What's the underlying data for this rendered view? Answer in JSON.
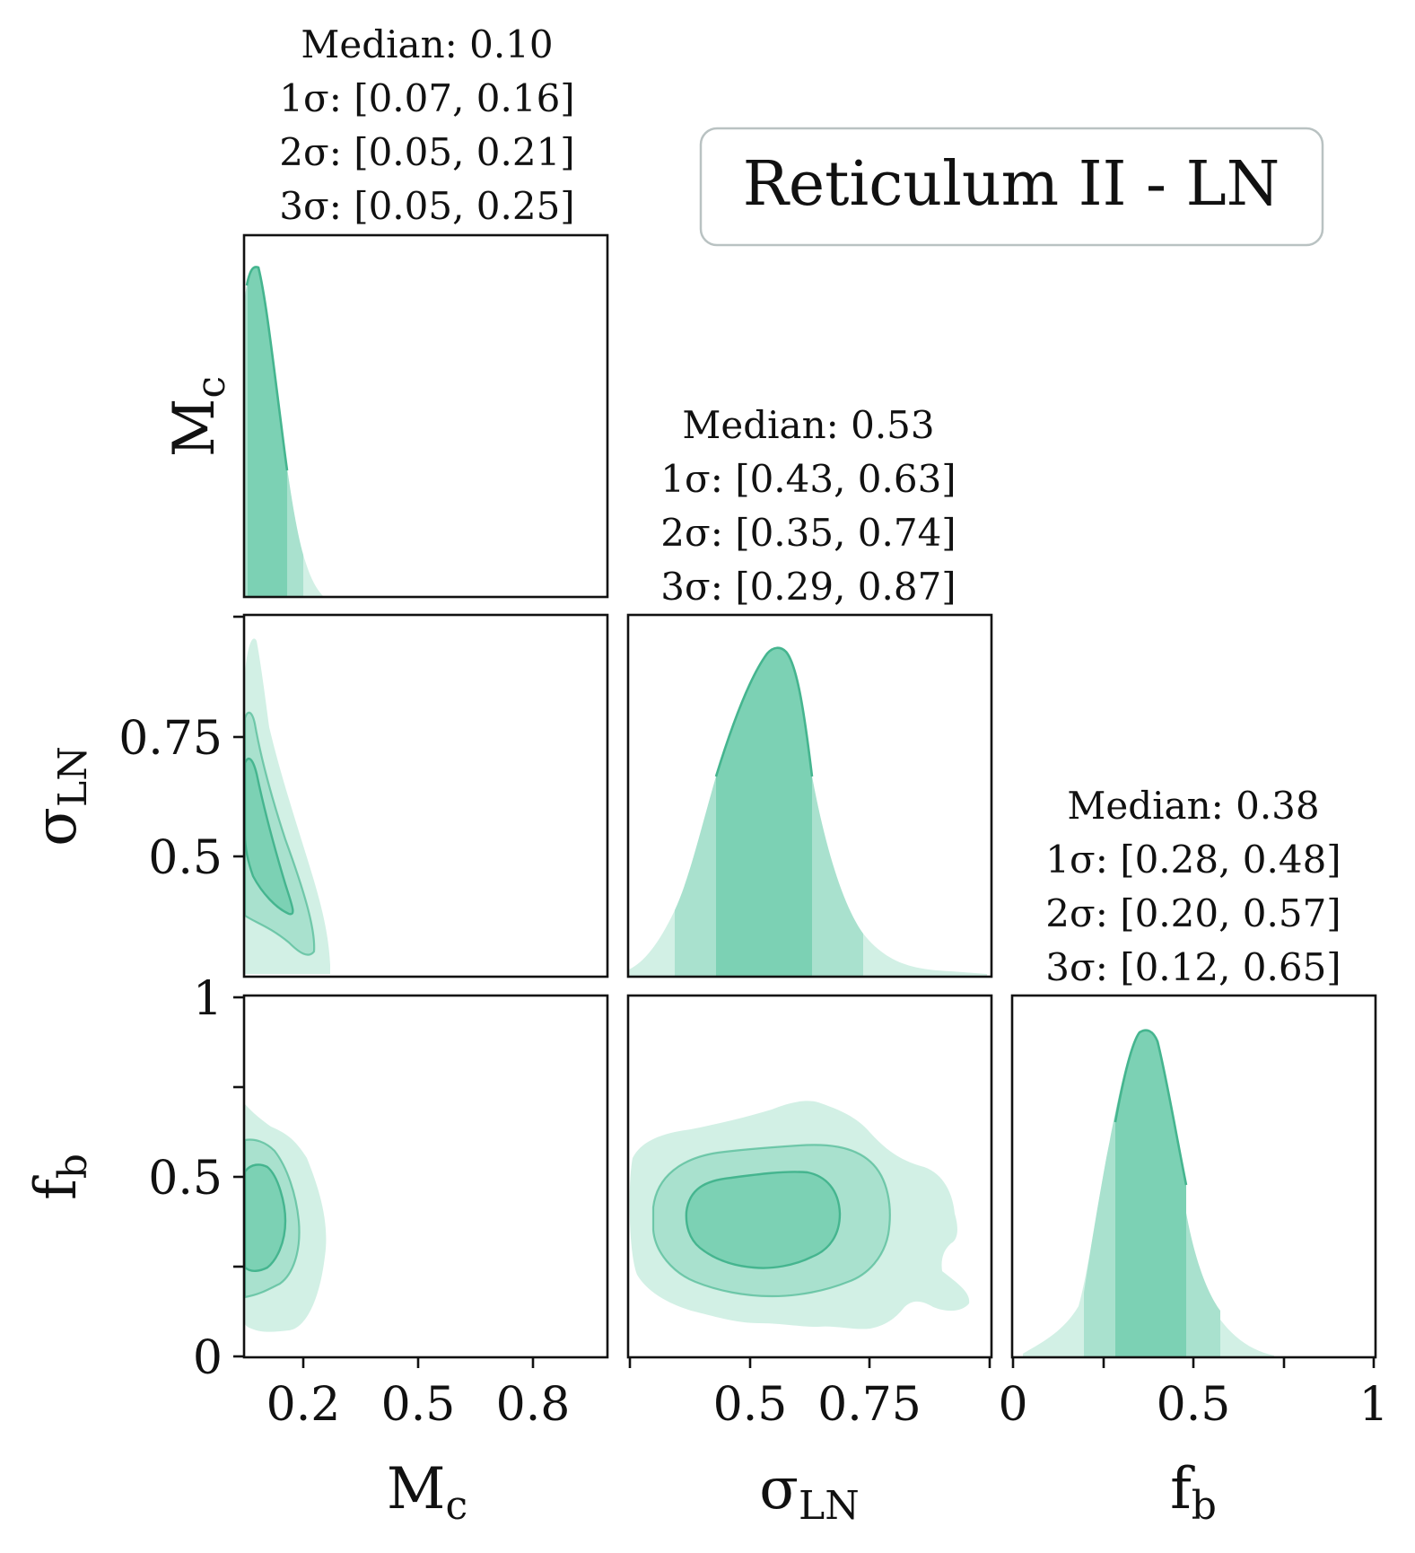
{
  "title": "Reticulum II - LN",
  "colors": {
    "c1": "#7cd1b4",
    "c2": "#a9e1ce",
    "c3": "#d2f0e5",
    "line": "#45b58f"
  },
  "params": [
    {
      "key": "Mc",
      "label_main": "M",
      "label_sub": "c",
      "stats": {
        "median": "Median: 0.10",
        "s1": "1σ: [0.07, 0.16]",
        "s2": "2σ: [0.05, 0.21]",
        "s3": "3σ: [0.05, 0.25]"
      },
      "ticks": [
        "0.2",
        "0.5",
        "0.8"
      ]
    },
    {
      "key": "sigmaLN",
      "label_main": "σ",
      "label_sub": "LN",
      "stats": {
        "median": "Median: 0.53",
        "s1": "1σ: [0.43, 0.63]",
        "s2": "2σ: [0.35, 0.74]",
        "s3": "3σ: [0.29, 0.87]"
      },
      "ticks": [
        "0.5",
        "0.75"
      ]
    },
    {
      "key": "fb",
      "label_main": "f",
      "label_sub": "b",
      "stats": {
        "median": "Median: 0.38",
        "s1": "1σ: [0.28, 0.48]",
        "s2": "2σ: [0.20, 0.57]",
        "s3": "3σ: [0.12, 0.65]"
      },
      "ticks": [
        "0",
        "0.5",
        "1"
      ]
    }
  ],
  "chart_data": {
    "type": "corner",
    "title": "Reticulum II - LN",
    "parameters": [
      "Mc",
      "σLN",
      "fb"
    ],
    "axis_ranges": {
      "Mc": [
        0.1,
        1.0
      ],
      "sigmaLN": [
        0.25,
        1.0
      ],
      "fb": [
        0,
        1
      ]
    },
    "axis_ticks": {
      "Mc": [
        0.2,
        0.5,
        0.8
      ],
      "sigmaLN": [
        0.5,
        0.75
      ],
      "fb": [
        0,
        0.5,
        1
      ]
    },
    "marginals": [
      {
        "param": "Mc",
        "median": 0.1,
        "sigma1": [
          0.07,
          0.16
        ],
        "sigma2": [
          0.05,
          0.21
        ],
        "sigma3": [
          0.05,
          0.25
        ]
      },
      {
        "param": "sigmaLN",
        "median": 0.53,
        "sigma1": [
          0.43,
          0.63
        ],
        "sigma2": [
          0.35,
          0.74
        ],
        "sigma3": [
          0.29,
          0.87
        ]
      },
      {
        "param": "fb",
        "median": 0.38,
        "sigma1": [
          0.28,
          0.48
        ],
        "sigma2": [
          0.2,
          0.57
        ],
        "sigma3": [
          0.12,
          0.65
        ]
      }
    ],
    "joint_contours": [
      "1σ",
      "2σ",
      "3σ"
    ]
  }
}
